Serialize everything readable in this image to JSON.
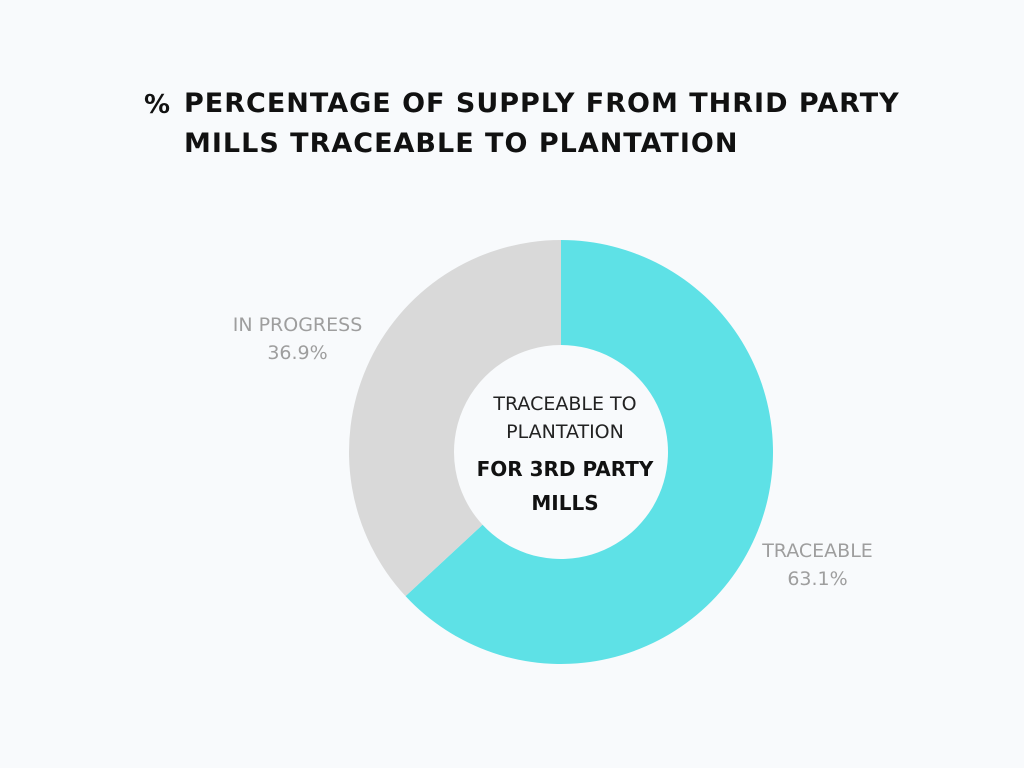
{
  "title_icon": "%",
  "title": "PERCENTAGE OF SUPPLY FROM THRID PARTY MILLS TRACEABLE TO PLANTATION",
  "center": {
    "line1": "TRACEABLE TO PLANTATION",
    "line2": "FOR 3RD PARTY MILLS"
  },
  "colors": {
    "traceable": "#5ee1e6",
    "in_progress": "#d9d9d9",
    "background": "#f8fafc"
  },
  "chart_data": {
    "type": "pie",
    "style": "donut",
    "title": "PERCENTAGE OF SUPPLY FROM THRID PARTY MILLS TRACEABLE TO PLANTATION",
    "slices": [
      {
        "label": "TRACEABLE",
        "value": 63.1,
        "display": "63.1%",
        "color": "#5ee1e6"
      },
      {
        "label": "IN PROGRESS",
        "value": 36.9,
        "display": "36.9%",
        "color": "#d9d9d9"
      }
    ]
  }
}
